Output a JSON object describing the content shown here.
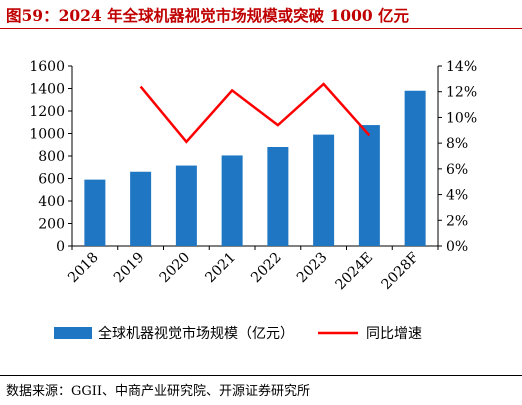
{
  "title": "图59：2024 年全球机器视觉市场规模或突破 1000 亿元",
  "source": "数据来源：GGII、中商产业研究院、开源证券研究所",
  "chart_data": {
    "type": "bar",
    "categories": [
      "2018",
      "2019",
      "2020",
      "2021",
      "2022",
      "2023",
      "2024E",
      "2028F"
    ],
    "series": [
      {
        "name": "全球机器视觉市场规模（亿元）",
        "type": "bar",
        "axis": "left",
        "color": "#1f77c4",
        "values": [
          590,
          660,
          715,
          805,
          880,
          990,
          1075,
          1380
        ]
      },
      {
        "name": "同比增速",
        "type": "line",
        "axis": "right",
        "color": "#ff0000",
        "values": [
          null,
          12.4,
          8.1,
          12.1,
          9.4,
          12.6,
          8.6,
          null
        ]
      }
    ],
    "y_left": {
      "min": 0,
      "max": 1600,
      "step": 200,
      "ticks": [
        "0",
        "200",
        "400",
        "600",
        "800",
        "1000",
        "1200",
        "1400",
        "1600"
      ]
    },
    "y_right": {
      "min": 0,
      "max": 14,
      "step": 2,
      "ticks": [
        "0%",
        "2%",
        "4%",
        "6%",
        "8%",
        "10%",
        "12%",
        "14%"
      ]
    },
    "grid": false,
    "legend_position": "bottom"
  }
}
